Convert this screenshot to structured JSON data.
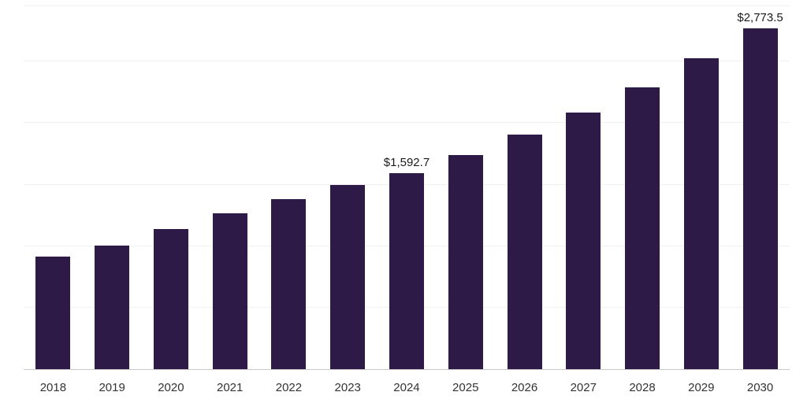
{
  "chart_data": {
    "type": "bar",
    "title": "",
    "xlabel": "",
    "ylabel": "",
    "categories": [
      "2018",
      "2019",
      "2020",
      "2021",
      "2022",
      "2023",
      "2024",
      "2025",
      "2026",
      "2027",
      "2028",
      "2029",
      "2030"
    ],
    "values": [
      915,
      1005,
      1140,
      1270,
      1380,
      1500,
      1592.7,
      1740,
      1905,
      2085,
      2290,
      2525,
      2773.5
    ],
    "ylim": [
      0,
      2950
    ],
    "gridline_values": [
      500,
      1000,
      1500,
      2000,
      2500,
      2950
    ],
    "grid": true,
    "legend_position": "none",
    "annotations": [
      {
        "category": "2024",
        "text": "$1,592.7"
      },
      {
        "category": "2030",
        "text": "$2,773.5"
      }
    ],
    "colors": {
      "bar": "#2e1a47",
      "gridline": "#f1f1f4",
      "axis_line": "#c9c9c9",
      "value_label": "#1a1a1a",
      "tick_label": "#333333",
      "background": "#ffffff"
    }
  }
}
